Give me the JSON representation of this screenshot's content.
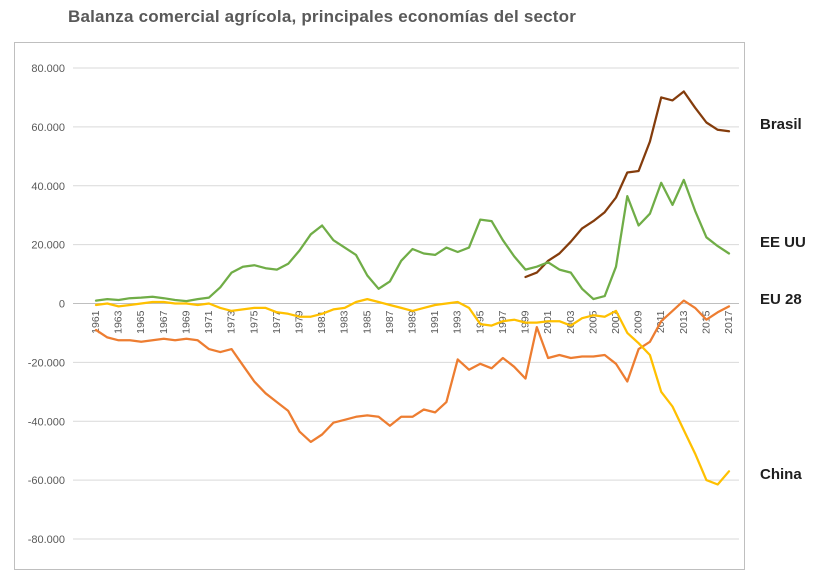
{
  "title": "Balanza comercial agrícola, principales economías del sector",
  "chart_data": {
    "type": "line",
    "title": "Balanza comercial agrícola, principales economías del sector",
    "xlabel": "",
    "ylabel": "",
    "ylim": [
      -80000,
      80000
    ],
    "ytick_step": 20000,
    "grid": "horizontal",
    "legend_position": "right-outside",
    "ytick_labels": [
      "80.000",
      "60.000",
      "40.000",
      "20.000",
      "0",
      "-20.000",
      "-40.000",
      "-60.000",
      "-80.000"
    ],
    "xtick_labels": [
      "1961",
      "1963",
      "1965",
      "1967",
      "1969",
      "1971",
      "1973",
      "1975",
      "1977",
      "1979",
      "1981",
      "1983",
      "1985",
      "1987",
      "1989",
      "1991",
      "1993",
      "1995",
      "1997",
      "1999",
      "2001",
      "2003",
      "2005",
      "2007",
      "2009",
      "2011",
      "2013",
      "2015",
      "2017"
    ],
    "x": [
      1961,
      1962,
      1963,
      1964,
      1965,
      1966,
      1967,
      1968,
      1969,
      1970,
      1971,
      1972,
      1973,
      1974,
      1975,
      1976,
      1977,
      1978,
      1979,
      1980,
      1981,
      1982,
      1983,
      1984,
      1985,
      1986,
      1987,
      1988,
      1989,
      1990,
      1991,
      1992,
      1993,
      1994,
      1995,
      1996,
      1997,
      1998,
      1999,
      2000,
      2001,
      2002,
      2003,
      2004,
      2005,
      2006,
      2007,
      2008,
      2009,
      2010,
      2011,
      2012,
      2013,
      2014,
      2015,
      2016,
      2017
    ],
    "series": [
      {
        "name": "Brasil",
        "color": "#843C0C",
        "values": [
          null,
          null,
          null,
          null,
          null,
          null,
          null,
          null,
          null,
          null,
          null,
          null,
          null,
          null,
          null,
          null,
          null,
          null,
          null,
          null,
          null,
          null,
          null,
          null,
          null,
          null,
          null,
          null,
          null,
          null,
          null,
          null,
          null,
          null,
          null,
          null,
          null,
          null,
          9000,
          10500,
          14500,
          17000,
          21000,
          25500,
          28000,
          31000,
          36000,
          44500,
          45000,
          55000,
          70000,
          69000,
          72000,
          66500,
          61500,
          59000,
          58500
        ]
      },
      {
        "name": "EE UU",
        "color": "#70AD47",
        "values": [
          1000,
          1500,
          1200,
          1800,
          2000,
          2300,
          1800,
          1200,
          800,
          1500,
          2000,
          5500,
          10500,
          12500,
          13000,
          12000,
          11500,
          13500,
          18000,
          23500,
          26500,
          21500,
          19000,
          16500,
          9500,
          5000,
          7500,
          14500,
          18500,
          17000,
          16500,
          19000,
          17500,
          19000,
          28500,
          28000,
          21500,
          16000,
          11500,
          12500,
          14000,
          11500,
          10500,
          5000,
          1500,
          2500,
          12500,
          36500,
          26500,
          30500,
          41000,
          33500,
          42000,
          31500,
          22500,
          19500,
          17000
        ]
      },
      {
        "name": "EU 28",
        "color": "#ED7D31",
        "values": [
          -9000,
          -11500,
          -12500,
          -12500,
          -13000,
          -12500,
          -12000,
          -12500,
          -12000,
          -12500,
          -15500,
          -16500,
          -15500,
          -21000,
          -26500,
          -30500,
          -33500,
          -36500,
          -43500,
          -47000,
          -44500,
          -40500,
          -39500,
          -38500,
          -38000,
          -38500,
          -41500,
          -38500,
          -38500,
          -36000,
          -37000,
          -33500,
          -19000,
          -22500,
          -20500,
          -22000,
          -18500,
          -21500,
          -25500,
          -8000,
          -18500,
          -17500,
          -18500,
          -18000,
          -18000,
          -17500,
          -20500,
          -26500,
          -15500,
          -13000,
          -6000,
          -2500,
          1000,
          -1500,
          -5500,
          -3000,
          -1000
        ]
      },
      {
        "name": "China",
        "color": "#FFC000",
        "values": [
          -500,
          0,
          -1000,
          -500,
          0,
          500,
          500,
          0,
          0,
          -500,
          0,
          -1500,
          -2500,
          -2000,
          -1500,
          -1500,
          -3000,
          -3500,
          -4500,
          -4500,
          -3500,
          -2000,
          -1500,
          500,
          1500,
          500,
          -500,
          -1500,
          -2500,
          -1500,
          -500,
          0,
          500,
          -1500,
          -7000,
          -7500,
          -6000,
          -5500,
          -6500,
          -6500,
          -6000,
          -6000,
          -7500,
          -5000,
          -4000,
          -4500,
          -2500,
          -10000,
          -13500,
          -17500,
          -30000,
          -35000,
          -43000,
          -51000,
          -60000,
          -61500,
          -57000
        ]
      }
    ]
  }
}
